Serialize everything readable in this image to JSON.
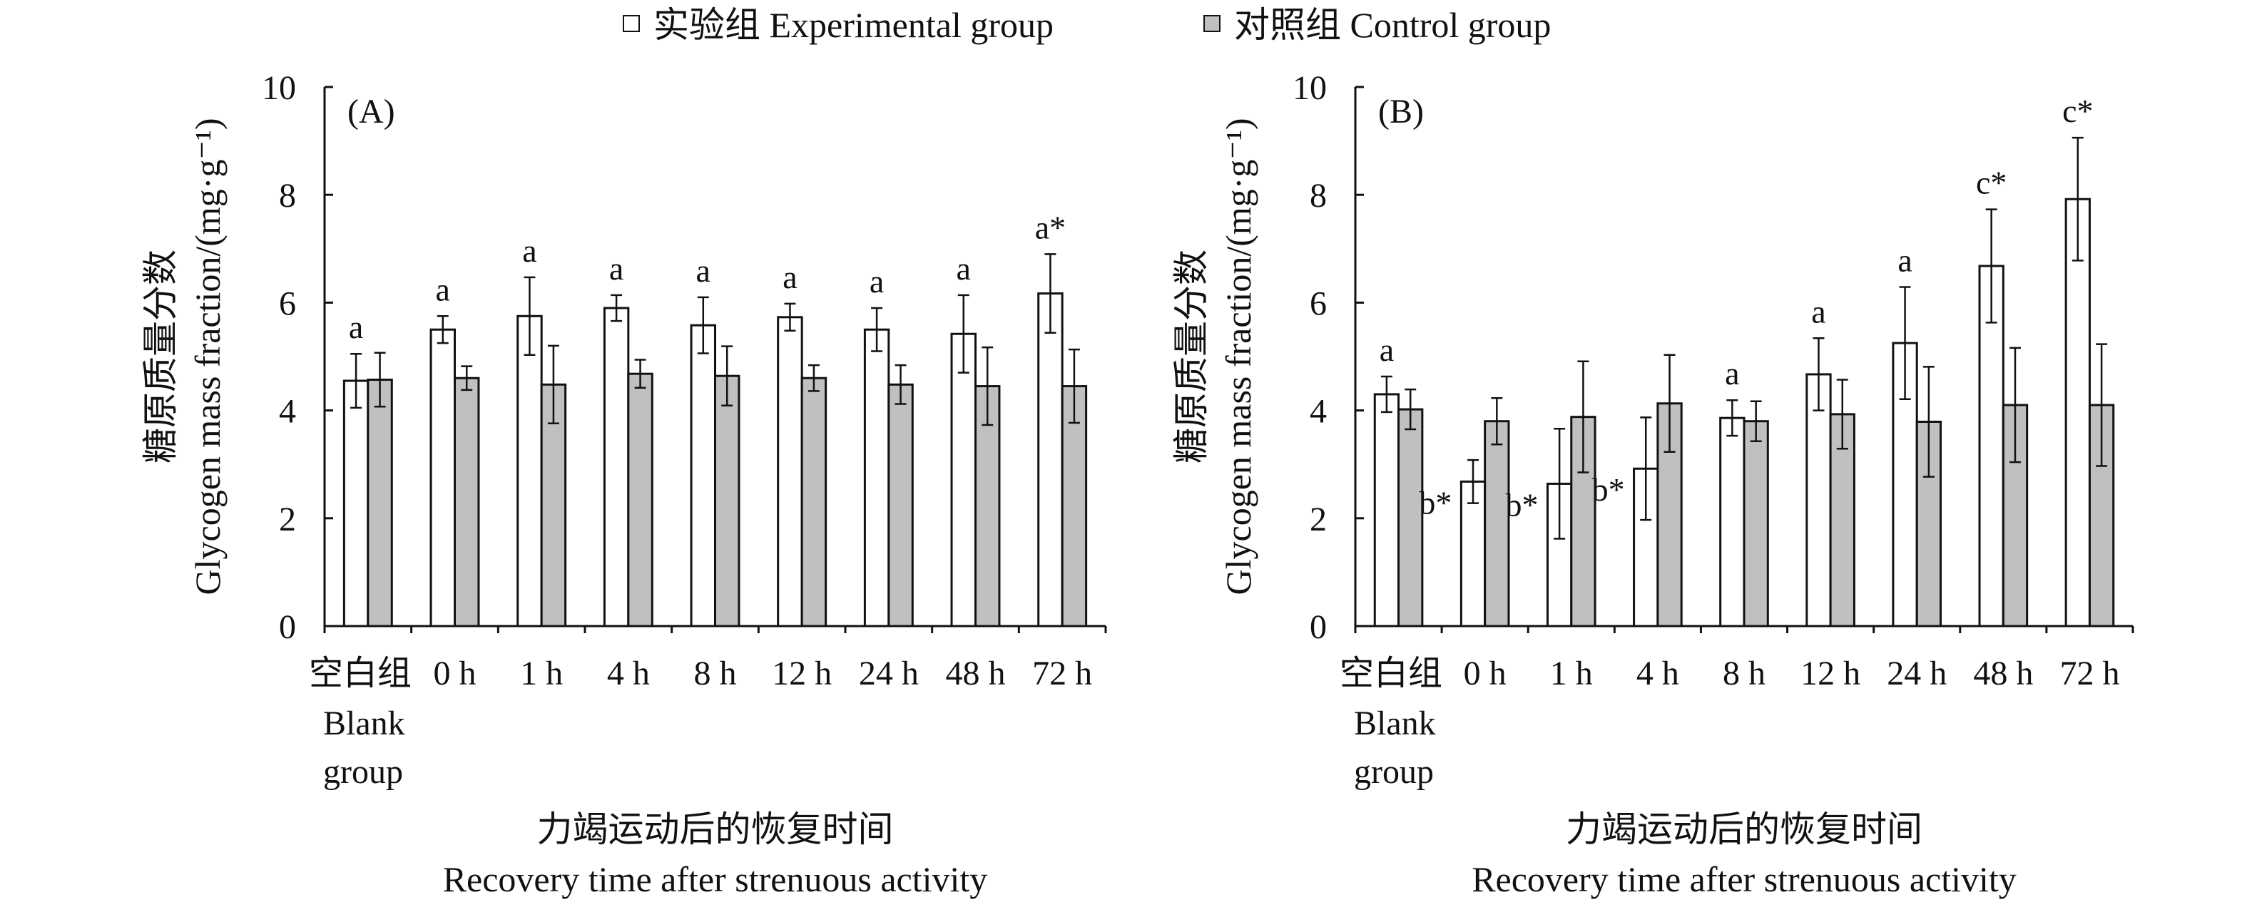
{
  "legend": [
    {
      "label": "实验组 Experimental group",
      "color": "#ffffff"
    },
    {
      "label": "对照组 Control group",
      "color": "#c0c0c0"
    }
  ],
  "colors": {
    "experimental_fill": "#ffffff",
    "control_fill": "#c0c0c0",
    "stroke": "#111111"
  },
  "chart_data": [
    {
      "type": "bar",
      "panel_label": "(A)",
      "ylabel_cn": "糖原质量分数",
      "ylabel_en": "Glycogen mass fraction/(mg·g⁻¹)",
      "xlabel_cn": "力竭运动后的恢复时间",
      "xlabel_en": "Recovery time after strenuous activity",
      "ylim": [
        0,
        10
      ],
      "yticks": [
        0,
        2,
        4,
        6,
        8,
        10
      ],
      "categories": [
        "空白组 Blank group",
        "0 h",
        "1 h",
        "4 h",
        "8 h",
        "12 h",
        "24 h",
        "48 h",
        "72 h"
      ],
      "category_label_lines": [
        [
          "空白组",
          "Blank",
          "group"
        ],
        [
          "0 h"
        ],
        [
          "1 h"
        ],
        [
          "4 h"
        ],
        [
          "8 h"
        ],
        [
          "12 h"
        ],
        [
          "24 h"
        ],
        [
          "48 h"
        ],
        [
          "72 h"
        ]
      ],
      "series": [
        {
          "name": "实验组 Experimental group",
          "values": [
            4.55,
            5.5,
            5.75,
            5.9,
            5.58,
            5.73,
            5.5,
            5.42,
            6.17
          ],
          "errors": [
            0.5,
            0.25,
            0.72,
            0.24,
            0.52,
            0.25,
            0.4,
            0.72,
            0.73
          ]
        },
        {
          "name": "对照组 Control group",
          "values": [
            4.57,
            4.6,
            4.48,
            4.68,
            4.64,
            4.6,
            4.48,
            4.45,
            4.45
          ],
          "errors": [
            0.5,
            0.22,
            0.72,
            0.26,
            0.55,
            0.24,
            0.36,
            0.72,
            0.68
          ]
        }
      ],
      "annotations": [
        "a",
        "a",
        "a",
        "a",
        "a",
        "a",
        "a",
        "a",
        "a*"
      ]
    },
    {
      "type": "bar",
      "panel_label": "(B)",
      "ylabel_cn": "糖原质量分数",
      "ylabel_en": "Glycogen mass fraction/(mg·g⁻¹)",
      "xlabel_cn": "力竭运动后的恢复时间",
      "xlabel_en": "Recovery time after strenuous activity",
      "ylim": [
        0,
        10
      ],
      "yticks": [
        0,
        2,
        4,
        6,
        8,
        10
      ],
      "categories": [
        "空白组 Blank group",
        "0 h",
        "1 h",
        "4 h",
        "8 h",
        "12 h",
        "24 h",
        "48 h",
        "72 h"
      ],
      "category_label_lines": [
        [
          "空白组",
          "Blank",
          "group"
        ],
        [
          "0 h"
        ],
        [
          "1 h"
        ],
        [
          "4 h"
        ],
        [
          "8 h"
        ],
        [
          "12 h"
        ],
        [
          "24 h"
        ],
        [
          "48 h"
        ],
        [
          "72 h"
        ]
      ],
      "series": [
        {
          "name": "实验组 Experimental group",
          "values": [
            4.3,
            2.68,
            2.64,
            2.92,
            3.86,
            4.67,
            5.25,
            6.68,
            7.92
          ],
          "errors": [
            0.33,
            0.4,
            1.02,
            0.95,
            0.33,
            0.67,
            1.04,
            1.05,
            1.14
          ]
        },
        {
          "name": "对照组 Control group",
          "values": [
            4.02,
            3.8,
            3.88,
            4.13,
            3.8,
            3.93,
            3.79,
            4.1,
            4.1
          ],
          "errors": [
            0.37,
            0.43,
            1.03,
            0.9,
            0.37,
            0.64,
            1.02,
            1.06,
            1.13
          ]
        }
      ],
      "annotations": [
        "a",
        "b*",
        "b*",
        "b*",
        "a",
        "a",
        "a",
        "c*",
        "c*"
      ]
    }
  ]
}
